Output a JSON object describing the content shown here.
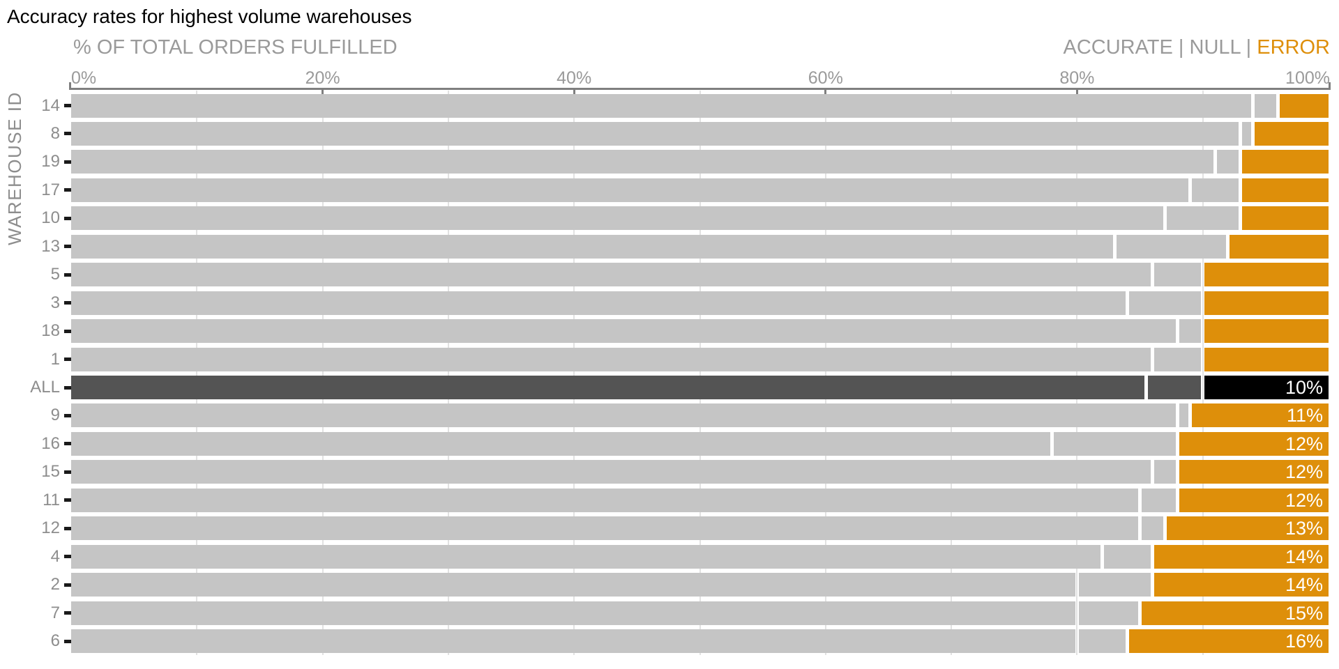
{
  "title": "Accuracy rates for highest volume warehouses",
  "x_axis": {
    "title": "% OF TOTAL ORDERS FULFILLED",
    "tick_labels": [
      "0%",
      "20%",
      "40%",
      "60%",
      "80%",
      "100%"
    ],
    "range": [
      0,
      100
    ]
  },
  "y_axis": {
    "title": "WAREHOUSE ID"
  },
  "legend": {
    "items": [
      {
        "label": "ACCURATE",
        "series": "accurate"
      },
      {
        "label": "NULL",
        "series": "null"
      },
      {
        "label": "ERROR",
        "series": "error"
      }
    ],
    "separator": " | "
  },
  "colors": {
    "accurate_gray": "#c5c5c5",
    "highlight_row_gray": "#545454",
    "highlight_error_black": "#000000",
    "error_orange": "#de8f0a",
    "axis_text": "#9a9a9a",
    "row_label_text": "#8d8d8d",
    "axis_line": "#7f7f7f",
    "y_tick": "#1a1a1a",
    "gridline": "#e2e2e2",
    "bar_label_text": "#ffffff",
    "title_text": "#000000"
  },
  "chart_data": {
    "type": "bar",
    "orientation": "horizontal",
    "stacked": true,
    "series_names": [
      "ACCURATE",
      "NULL",
      "ERROR"
    ],
    "xlim": [
      0,
      100
    ],
    "grid_minor_step_pct": 10,
    "rows": [
      {
        "id": "14",
        "accurate": 94,
        "null": 2,
        "error": 4,
        "label": "",
        "highlight": false
      },
      {
        "id": "8",
        "accurate": 93,
        "null": 1,
        "error": 6,
        "label": "",
        "highlight": false
      },
      {
        "id": "19",
        "accurate": 91,
        "null": 2,
        "error": 7,
        "label": "",
        "highlight": false
      },
      {
        "id": "17",
        "accurate": 89,
        "null": 4,
        "error": 7,
        "label": "",
        "highlight": false
      },
      {
        "id": "10",
        "accurate": 87,
        "null": 6,
        "error": 7,
        "label": "",
        "highlight": false
      },
      {
        "id": "13",
        "accurate": 83,
        "null": 9,
        "error": 8,
        "label": "",
        "highlight": false
      },
      {
        "id": "5",
        "accurate": 86,
        "null": 4,
        "error": 10,
        "label": "",
        "highlight": false
      },
      {
        "id": "3",
        "accurate": 84,
        "null": 6,
        "error": 10,
        "label": "",
        "highlight": false
      },
      {
        "id": "18",
        "accurate": 88,
        "null": 2,
        "error": 10,
        "label": "",
        "highlight": false
      },
      {
        "id": "1",
        "accurate": 86,
        "null": 4,
        "error": 10,
        "label": "",
        "highlight": false
      },
      {
        "id": "ALL",
        "accurate": 85.5,
        "null": 4.5,
        "error": 10,
        "label": "10%",
        "highlight": true
      },
      {
        "id": "9",
        "accurate": 88,
        "null": 1,
        "error": 11,
        "label": "11%",
        "highlight": false
      },
      {
        "id": "16",
        "accurate": 78,
        "null": 10,
        "error": 12,
        "label": "12%",
        "highlight": false
      },
      {
        "id": "15",
        "accurate": 86,
        "null": 2,
        "error": 12,
        "label": "12%",
        "highlight": false
      },
      {
        "id": "11",
        "accurate": 85,
        "null": 3,
        "error": 12,
        "label": "12%",
        "highlight": false
      },
      {
        "id": "12",
        "accurate": 85,
        "null": 2,
        "error": 13,
        "label": "13%",
        "highlight": false
      },
      {
        "id": "4",
        "accurate": 82,
        "null": 4,
        "error": 14,
        "label": "14%",
        "highlight": false
      },
      {
        "id": "2",
        "accurate": 80,
        "null": 6,
        "error": 14,
        "label": "14%",
        "highlight": false
      },
      {
        "id": "7",
        "accurate": 80,
        "null": 5,
        "error": 15,
        "label": "15%",
        "highlight": false
      },
      {
        "id": "6",
        "accurate": 80,
        "null": 4,
        "error": 16,
        "label": "16%",
        "highlight": false
      }
    ]
  }
}
